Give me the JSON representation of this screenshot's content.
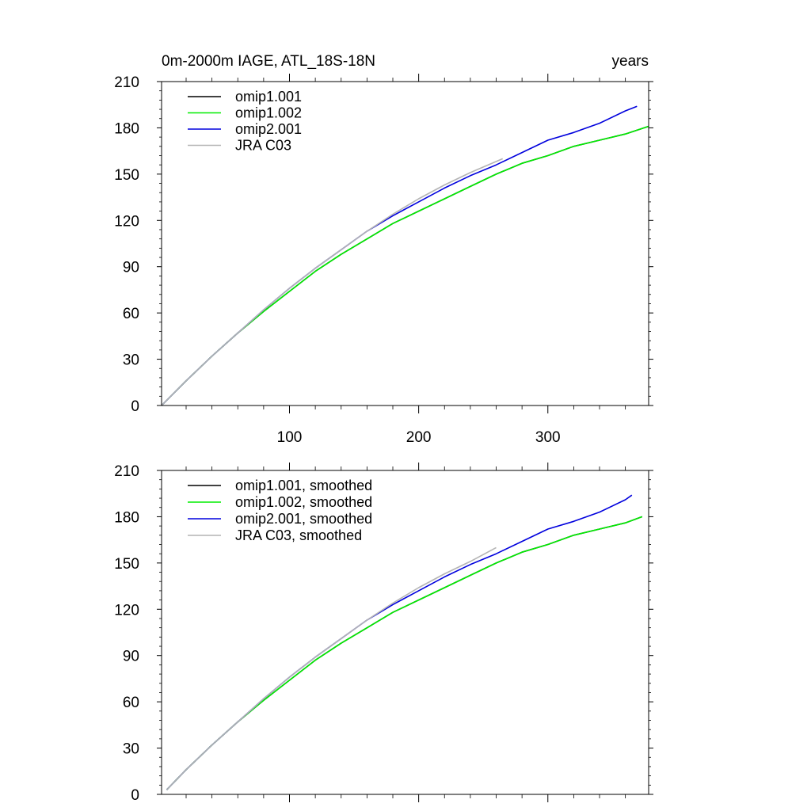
{
  "colors": {
    "omip1_001": "#000000",
    "omip1_002": "#00ee00",
    "omip2_001": "#0000dd",
    "jra_c03": "#b4b4b4"
  },
  "chart_data": [
    {
      "type": "line",
      "title": "0m-2000m IAGE, ATL_18S-18N",
      "units": "years",
      "xlabel": "",
      "ylabel": "",
      "xlim": [
        1,
        378
      ],
      "ylim": [
        0,
        210
      ],
      "xticks": [
        100,
        200,
        300
      ],
      "yticks": [
        0,
        30,
        60,
        90,
        120,
        150,
        180,
        210
      ],
      "legend_position": "top-left",
      "series": [
        {
          "name": "omip1.001",
          "color": "#000000",
          "x": [
            1,
            20,
            40,
            60,
            80,
            100,
            120,
            140,
            160,
            180,
            200,
            220,
            240,
            260,
            280,
            300,
            320,
            340,
            360,
            378
          ],
          "y": [
            0,
            16,
            32,
            47,
            61,
            74,
            87,
            98,
            108,
            118,
            126,
            134,
            142,
            150,
            157,
            162,
            168,
            172,
            176,
            181
          ]
        },
        {
          "name": "omip1.002",
          "color": "#00ee00",
          "x": [
            1,
            20,
            40,
            60,
            80,
            100,
            120,
            140,
            160,
            180,
            200,
            220,
            240,
            260,
            280,
            300,
            320,
            340,
            360,
            378
          ],
          "y": [
            0,
            16,
            32,
            47,
            61,
            74,
            87,
            98,
            108,
            118,
            126,
            134,
            142,
            150,
            157,
            162,
            168,
            172,
            176,
            181
          ]
        },
        {
          "name": "omip2.001",
          "color": "#0000dd",
          "x": [
            1,
            20,
            40,
            60,
            80,
            100,
            120,
            140,
            160,
            180,
            200,
            220,
            240,
            260,
            280,
            300,
            320,
            340,
            360,
            369
          ],
          "y": [
            0,
            16,
            32,
            47,
            62,
            76,
            89,
            101,
            113,
            123,
            132,
            141,
            149,
            156,
            164,
            172,
            177,
            183,
            191,
            194
          ]
        },
        {
          "name": "JRA C03",
          "color": "#b4b4b4",
          "x": [
            1,
            20,
            40,
            60,
            80,
            100,
            120,
            140,
            160,
            180,
            200,
            220,
            240,
            265
          ],
          "y": [
            0,
            16,
            32,
            47,
            62,
            76,
            89,
            101,
            113,
            124,
            134,
            143,
            151,
            160
          ]
        }
      ]
    },
    {
      "type": "line",
      "title": "",
      "units": "",
      "xlabel": "",
      "ylabel": "",
      "xlim": [
        1,
        378
      ],
      "ylim": [
        0,
        210
      ],
      "xticks": [
        100,
        200,
        300
      ],
      "yticks": [
        0,
        30,
        60,
        90,
        120,
        150,
        180,
        210
      ],
      "legend_position": "top-left",
      "series": [
        {
          "name": "omip1.001, smoothed",
          "color": "#000000",
          "x": [
            5,
            20,
            40,
            60,
            80,
            100,
            120,
            140,
            160,
            180,
            200,
            220,
            240,
            260,
            280,
            300,
            320,
            340,
            360,
            373
          ],
          "y": [
            3,
            16,
            32,
            47,
            61,
            74,
            87,
            98,
            108,
            118,
            126,
            134,
            142,
            150,
            157,
            162,
            168,
            172,
            176,
            180
          ]
        },
        {
          "name": "omip1.002, smoothed",
          "color": "#00ee00",
          "x": [
            5,
            20,
            40,
            60,
            80,
            100,
            120,
            140,
            160,
            180,
            200,
            220,
            240,
            260,
            280,
            300,
            320,
            340,
            360,
            373
          ],
          "y": [
            3,
            16,
            32,
            47,
            61,
            74,
            87,
            98,
            108,
            118,
            126,
            134,
            142,
            150,
            157,
            162,
            168,
            172,
            176,
            180
          ]
        },
        {
          "name": "omip2.001, smoothed",
          "color": "#0000dd",
          "x": [
            5,
            20,
            40,
            60,
            80,
            100,
            120,
            140,
            160,
            180,
            200,
            220,
            240,
            260,
            280,
            300,
            320,
            340,
            360,
            365
          ],
          "y": [
            3,
            16,
            32,
            47,
            62,
            76,
            89,
            101,
            113,
            123,
            132,
            141,
            149,
            156,
            164,
            172,
            177,
            183,
            191,
            194
          ]
        },
        {
          "name": "JRA C03, smoothed",
          "color": "#b4b4b4",
          "x": [
            5,
            20,
            40,
            60,
            80,
            100,
            120,
            140,
            160,
            180,
            200,
            220,
            240,
            260
          ],
          "y": [
            3,
            16,
            32,
            47,
            62,
            76,
            89,
            101,
            113,
            124,
            134,
            143,
            151,
            160
          ]
        }
      ]
    }
  ]
}
